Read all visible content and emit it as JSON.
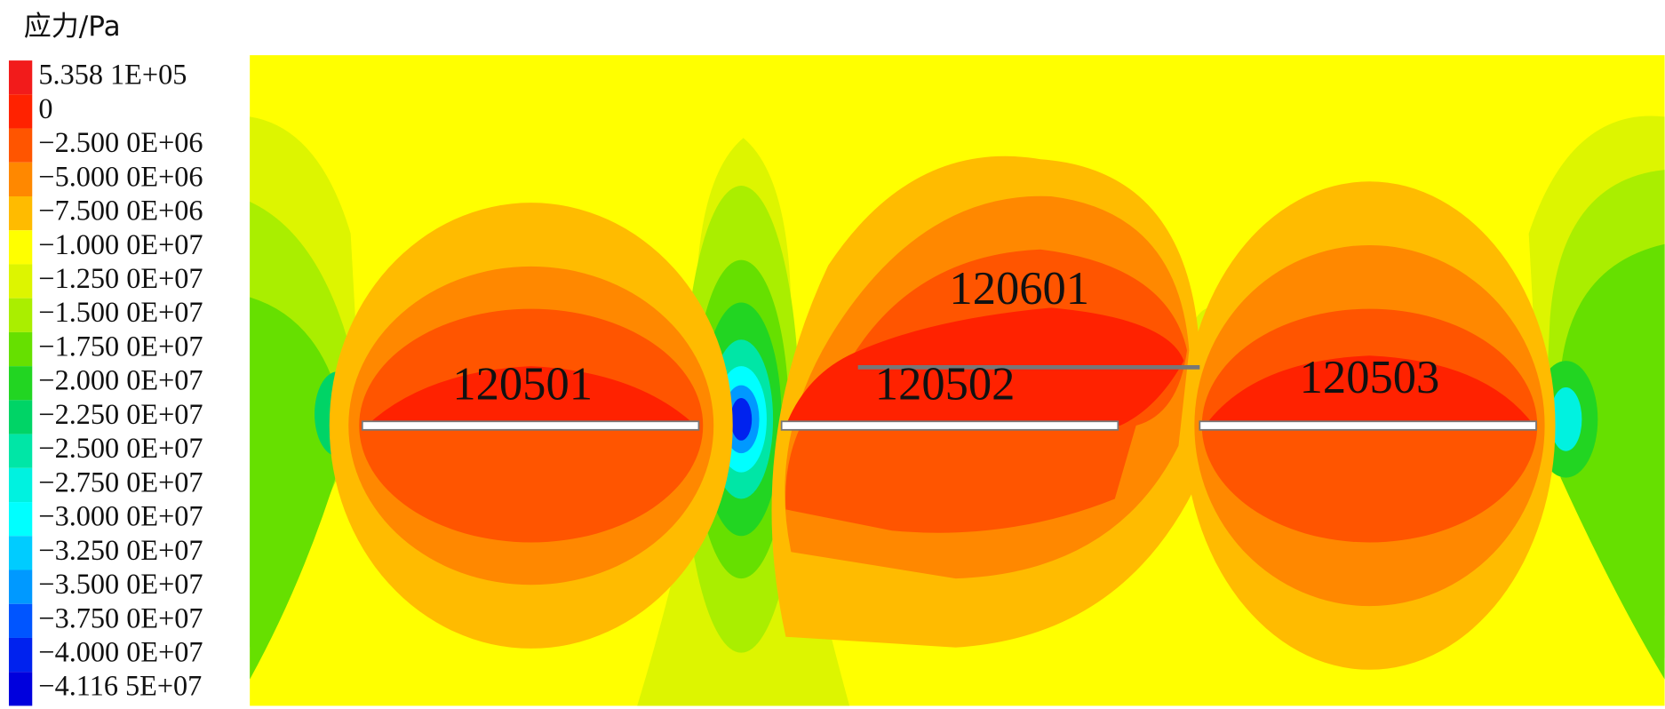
{
  "chart_data": {
    "type": "contour",
    "title": "应力/Pa",
    "levels": [
      {
        "value": 535810,
        "label": "5.358 1E+05"
      },
      0,
      {
        "value": -2500000,
        "label": "−2.500 0E+06"
      },
      {
        "value": -5000000,
        "label": "−5.000 0E+06"
      },
      {
        "value": -7500000,
        "label": "−7.500 0E+06"
      },
      {
        "value": -10000000,
        "label": "−1.000 0E+07"
      },
      {
        "value": -12500000,
        "label": "−1.250 0E+07"
      },
      {
        "value": -15000000,
        "label": "−1.500 0E+07"
      },
      {
        "value": -17500000,
        "label": "−1.750 0E+07"
      },
      {
        "value": -20000000,
        "label": "−2.000 0E+07"
      },
      {
        "value": -22500000,
        "label": "−2.250 0E+07"
      },
      {
        "value": -25000000,
        "label": "−2.500 0E+07"
      },
      {
        "value": -27500000,
        "label": "−2.750 0E+07"
      },
      {
        "value": -30000000,
        "label": "−3.000 0E+07"
      },
      {
        "value": -32500000,
        "label": "−3.250 0E+07"
      },
      {
        "value": -35000000,
        "label": "−3.500 0E+07"
      },
      {
        "value": -37500000,
        "label": "−3.750 0E+07"
      },
      {
        "value": -40000000,
        "label": "−4.000 0E+07"
      },
      {
        "value": -41165000,
        "label": "−4.116 5E+07"
      }
    ],
    "colors": [
      "#f21b1b",
      "#ff2200",
      "#ff5500",
      "#ff8800",
      "#ffbb00",
      "#ffff00",
      "#ddf500",
      "#aaee00",
      "#66e000",
      "#22d522",
      "#00d466",
      "#00e6a6",
      "#00f2e0",
      "#00ffff",
      "#00ccff",
      "#0099ff",
      "#0055ff",
      "#0022ee",
      "#0000dd"
    ],
    "annotations": [
      "120501",
      "120502",
      "120503",
      "120601"
    ]
  }
}
